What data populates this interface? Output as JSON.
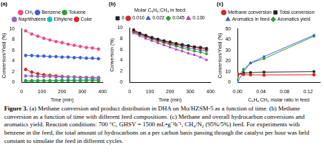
{
  "chart_data": [
    {
      "type": "line",
      "title": "(a)",
      "x_label": "Time (min)",
      "y_label": "Conversion/Yield (%)",
      "x": [
        20,
        50,
        80,
        110,
        140,
        170,
        200,
        230,
        260,
        290,
        320,
        350,
        380
      ],
      "xlim": [
        0,
        400
      ],
      "xticks": [
        0,
        100,
        200,
        300,
        400
      ],
      "ylim": [
        0,
        10
      ],
      "yticks": [
        0,
        2,
        4,
        6,
        8,
        10
      ],
      "grid": false,
      "legend": "top",
      "line_style": "solid",
      "series": [
        {
          "name": "CH₄",
          "color": "#ee4b8b",
          "marker": "circle",
          "values": [
            9.6,
            9.0,
            8.6,
            8.2,
            7.9,
            7.6,
            7.4,
            7.1,
            6.9,
            6.7,
            6.5,
            6.4,
            6.2
          ]
        },
        {
          "name": "Benzene",
          "color": "#3b5fd9",
          "marker": "circle",
          "values": [
            5.0,
            5.0,
            4.9,
            4.9,
            4.8,
            4.8,
            4.7,
            4.7,
            4.6,
            4.6,
            4.5,
            4.5,
            4.4
          ]
        },
        {
          "name": "Toluene",
          "color": "#2ca02c",
          "marker": "circle",
          "values": [
            0.3,
            0.3,
            0.3,
            0.3,
            0.3,
            0.3,
            0.3,
            0.3,
            0.3,
            0.3,
            0.3,
            0.3,
            0.3
          ]
        },
        {
          "name": "Naphthalene",
          "color": "#9467bd",
          "marker": "circle",
          "values": [
            1.2,
            1.2,
            1.1,
            1.1,
            1.1,
            1.0,
            1.0,
            1.0,
            1.0,
            0.9,
            0.9,
            0.9,
            0.9
          ]
        },
        {
          "name": "Ethylene",
          "color": "#17becf",
          "marker": "circle",
          "values": [
            0.2,
            0.2,
            0.3,
            0.3,
            0.3,
            0.3,
            0.4,
            0.4,
            0.4,
            0.4,
            0.5,
            0.5,
            0.5
          ]
        },
        {
          "name": "Coke",
          "color": "#d62728",
          "marker": "circle",
          "values": [
            2.4,
            1.9,
            1.6,
            1.4,
            1.3,
            1.2,
            1.1,
            1.0,
            1.0,
            0.9,
            0.9,
            0.8,
            0.8
          ]
        }
      ]
    },
    {
      "type": "line",
      "title": "(b)",
      "x_label": "Time (min)",
      "y_label": "Conversion (%)",
      "annotations": [
        "Molar C₆H₆:CH₄ in feed:"
      ],
      "x": [
        20,
        50,
        80,
        110,
        140,
        170,
        200,
        230,
        260,
        290,
        320,
        350,
        380
      ],
      "xlim": [
        0,
        400
      ],
      "xticks": [
        0,
        100,
        200,
        300,
        400
      ],
      "ylim": [
        0,
        10
      ],
      "yticks": [
        0,
        2,
        4,
        6,
        8,
        10
      ],
      "grid": false,
      "legend": "top",
      "line_style": "solid",
      "series": [
        {
          "name": "0",
          "color": "#222222",
          "marker": "square",
          "values": [
            9.6,
            9.0,
            8.6,
            8.2,
            7.9,
            7.6,
            7.4,
            7.1,
            6.9,
            6.7,
            6.5,
            6.4,
            6.2
          ]
        },
        {
          "name": "0.010",
          "color": "#d62728",
          "marker": "circle",
          "values": [
            9.4,
            8.9,
            8.5,
            8.1,
            7.8,
            7.5,
            7.2,
            7.0,
            6.8,
            6.6,
            6.4,
            6.2,
            6.0
          ]
        },
        {
          "name": "0.022",
          "color": "#3b5fd9",
          "marker": "triangle",
          "values": [
            9.3,
            8.8,
            8.4,
            8.0,
            7.7,
            7.4,
            7.1,
            6.8,
            6.6,
            6.3,
            6.1,
            5.9,
            5.7
          ]
        },
        {
          "name": "0.045",
          "color": "#2ca02c",
          "marker": "diamond",
          "values": [
            9.2,
            8.7,
            8.3,
            7.9,
            7.5,
            7.2,
            6.9,
            6.6,
            6.3,
            6.0,
            5.7,
            5.5,
            5.2
          ]
        },
        {
          "name": "0.130",
          "color": "#c03cc0",
          "marker": "triangle",
          "values": [
            9.0,
            8.5,
            8.0,
            7.6,
            7.2,
            6.8,
            6.4,
            6.0,
            5.7,
            5.3,
            5.0,
            4.6,
            4.1
          ]
        }
      ]
    },
    {
      "type": "line",
      "title": "(c)",
      "x_label": "C₆H₆:CH₄ molar ratio in feed",
      "y_label": "Conversion/Yield (%)",
      "x": [
        0,
        0.01,
        0.022,
        0.045,
        0.13
      ],
      "xlim": [
        0,
        0.14
      ],
      "xticks": [
        {
          "value": 0,
          "label": "0.00"
        },
        0.04,
        0.08,
        0.12
      ],
      "ylim": [
        0,
        50
      ],
      "yticks": [
        0,
        10,
        20,
        30,
        40,
        50
      ],
      "grid": false,
      "legend": "top",
      "line_style": "solid",
      "series": [
        {
          "name": "Methane conversion",
          "color": "#d62728",
          "marker": "circle",
          "values": [
            7.5,
            7.3,
            7.0,
            6.8,
            7.0
          ]
        },
        {
          "name": "Total conversion",
          "color": "#222222",
          "marker": "square",
          "values": [
            7.5,
            8.5,
            9.0,
            9.5,
            10
          ]
        },
        {
          "name": "Aromatics in feed",
          "color": "#3b5fd9",
          "marker": "triangle",
          "values": [
            0,
            10,
            18,
            24,
            44
          ]
        },
        {
          "name": "Aromatics yield",
          "color": "#2ca02c",
          "marker": "diamond",
          "values": [
            5,
            12,
            18,
            22,
            43
          ]
        }
      ]
    }
  ],
  "caption": {
    "label": "Figure 3.",
    "text": "(a) Methane conversion and product distribution in DHA on Mo/HZSM-5 as a function of time. (b) Methane conversion as a function of time with different feed compositions. (c) Methane and overall hydrocarbon conversions and aromatics yield. Reaction conditions: 700 °C, GHSV = 1500 mL•g⁻¹h⁻¹, CH₄/N₂ (95%/5%) feed. For experiments with benzene in the feed, the total amount of hydrocarbons on a per carbon basis passing through the catalyst per hour was held constant to simulate the feed in different cycles."
  }
}
